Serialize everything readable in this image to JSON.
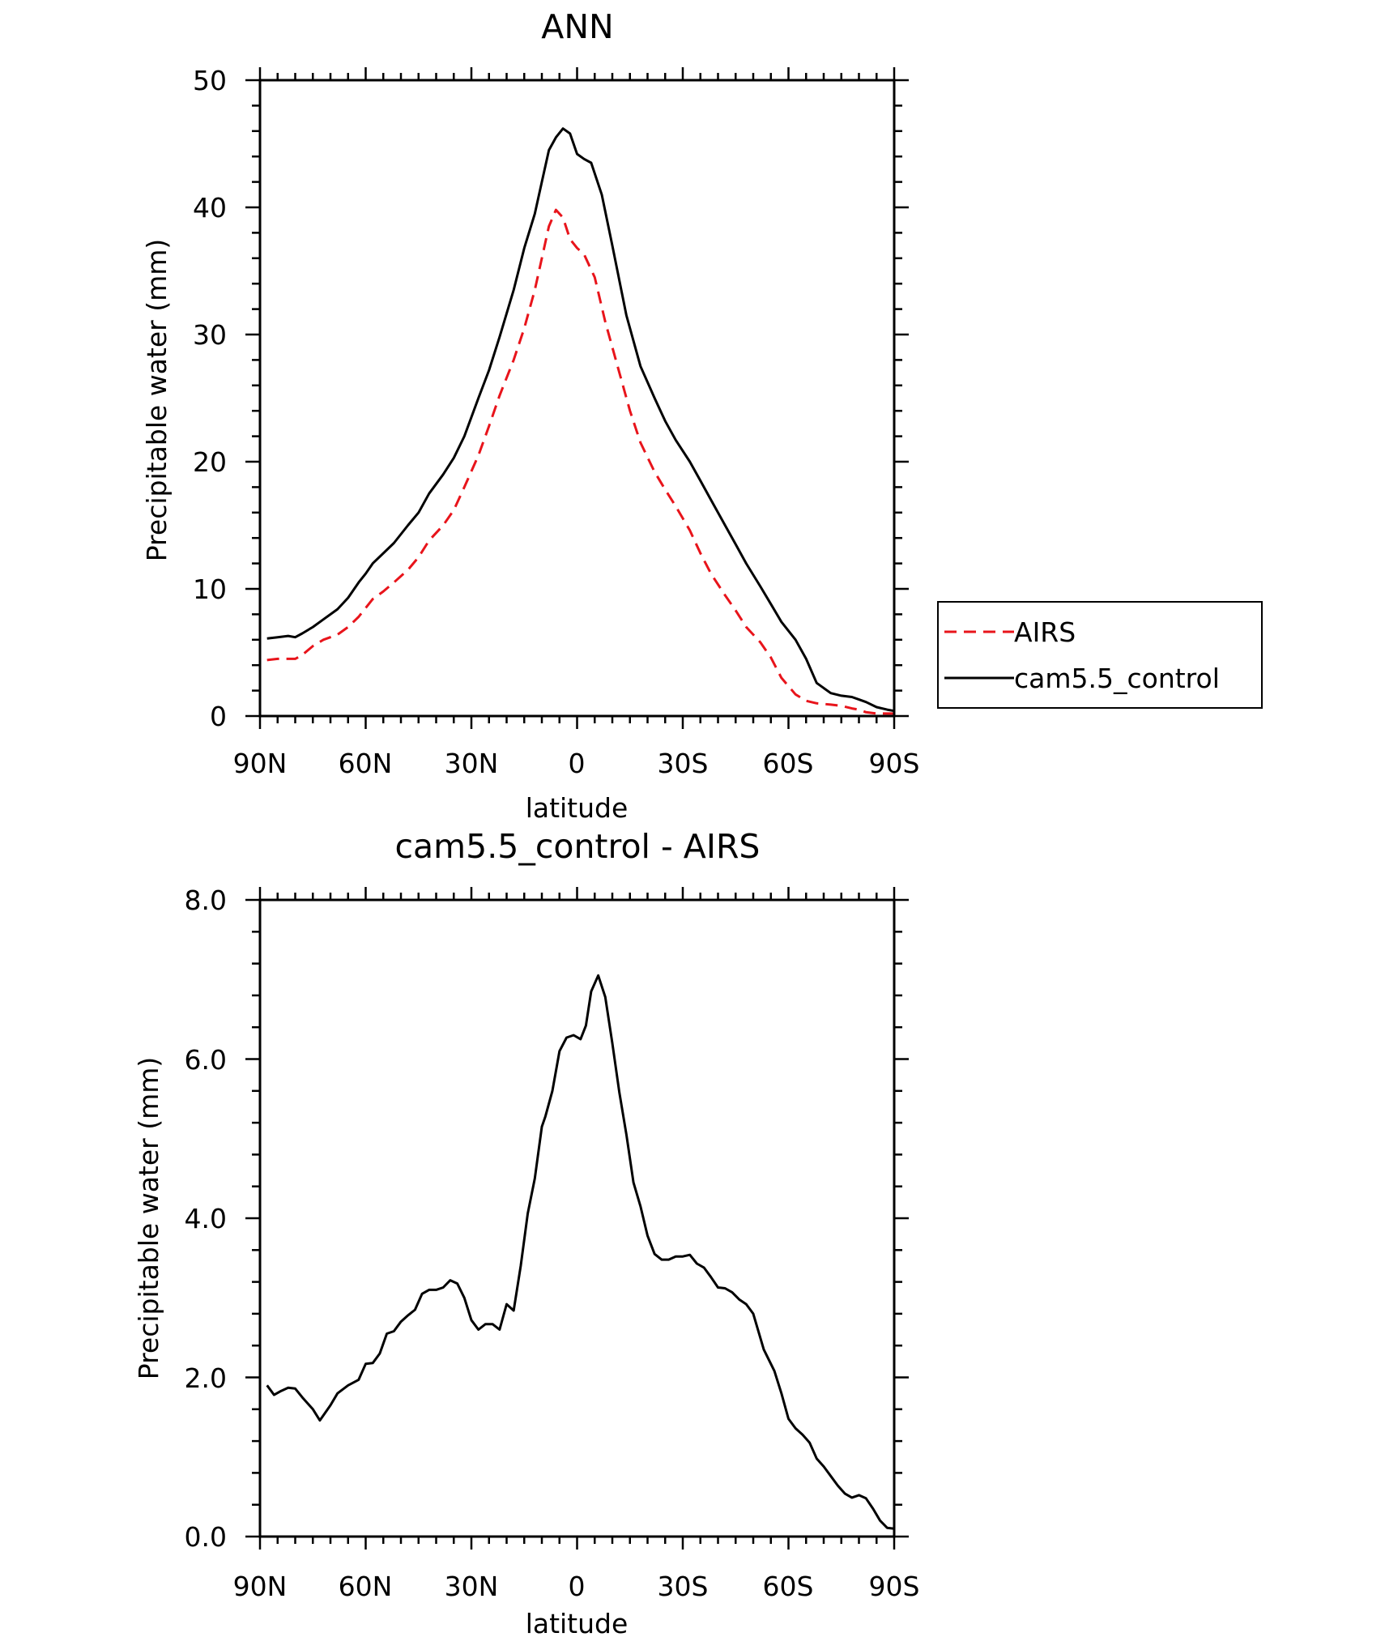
{
  "chart_data": [
    {
      "type": "line",
      "title": "ANN",
      "xlabel": "latitude",
      "ylabel": "Precipitable water (mm)",
      "xlim": [
        90,
        -90
      ],
      "ylim": [
        0,
        50
      ],
      "x_ticks": [
        90,
        60,
        30,
        0,
        -30,
        -60,
        -90
      ],
      "x_tick_labels": [
        "90N",
        "60N",
        "30N",
        "0",
        "30S",
        "60S",
        "90S"
      ],
      "y_ticks": [
        0,
        10,
        20,
        30,
        40,
        50
      ],
      "y_tick_labels": [
        "0",
        "10",
        "20",
        "30",
        "40",
        "50"
      ],
      "legend": {
        "placement": "right",
        "entries": [
          "AIRS",
          "cam5.5_control"
        ]
      },
      "series": [
        {
          "name": "AIRS",
          "color": "#e8141b",
          "dash": "dashed",
          "x": [
            88,
            85,
            80,
            78,
            75,
            72,
            68,
            65,
            62,
            60,
            58,
            55,
            52,
            48,
            45,
            42,
            38,
            35,
            32,
            28,
            25,
            22,
            18,
            15,
            12,
            10,
            8,
            6,
            4,
            2,
            0,
            -2,
            -5,
            -8,
            -12,
            -15,
            -18,
            -22,
            -25,
            -28,
            -32,
            -35,
            -38,
            -42,
            -45,
            -48,
            -52,
            -55,
            -58,
            -62,
            -65,
            -68,
            -72,
            -75,
            -78,
            -80,
            -82,
            -85,
            -88,
            -90
          ],
          "values": [
            4.4,
            4.5,
            4.5,
            4.8,
            5.5,
            6.0,
            6.4,
            7.0,
            7.8,
            8.5,
            9.2,
            9.8,
            10.5,
            11.5,
            12.5,
            13.8,
            15.0,
            16.2,
            18.0,
            20.5,
            22.8,
            25.2,
            28.0,
            30.5,
            33.5,
            36.0,
            38.5,
            39.8,
            39.2,
            37.5,
            36.8,
            36.3,
            34.5,
            31.0,
            27.0,
            24.0,
            21.5,
            19.2,
            17.8,
            16.5,
            14.6,
            12.8,
            11.2,
            9.5,
            8.3,
            7.0,
            5.8,
            4.6,
            3.0,
            1.7,
            1.2,
            1.0,
            0.9,
            0.8,
            0.6,
            0.5,
            0.3,
            0.2,
            0.2,
            0.2
          ]
        },
        {
          "name": "cam5.5_control",
          "color": "#000000",
          "dash": "solid",
          "x": [
            88,
            85,
            82,
            80,
            78,
            75,
            72,
            68,
            65,
            62,
            60,
            58,
            55,
            52,
            48,
            45,
            42,
            38,
            35,
            32,
            28,
            25,
            22,
            18,
            15,
            12,
            10,
            8,
            6,
            4,
            2,
            0,
            -2,
            -4,
            -7,
            -10,
            -14,
            -18,
            -22,
            -25,
            -28,
            -32,
            -35,
            -38,
            -42,
            -45,
            -48,
            -52,
            -55,
            -58,
            -62,
            -65,
            -68,
            -72,
            -75,
            -78,
            -80,
            -82,
            -85,
            -88,
            -90
          ],
          "values": [
            6.1,
            6.2,
            6.3,
            6.2,
            6.5,
            7.0,
            7.6,
            8.4,
            9.3,
            10.5,
            11.2,
            12.0,
            12.8,
            13.6,
            15.0,
            16.0,
            17.5,
            19.0,
            20.3,
            22.0,
            25.0,
            27.2,
            29.8,
            33.5,
            36.8,
            39.5,
            42.0,
            44.5,
            45.5,
            46.2,
            45.8,
            44.2,
            43.8,
            43.5,
            41.0,
            37.0,
            31.5,
            27.5,
            25.0,
            23.2,
            21.7,
            20.0,
            18.5,
            17.0,
            15.0,
            13.5,
            12.0,
            10.2,
            8.8,
            7.4,
            6.0,
            4.5,
            2.6,
            1.8,
            1.6,
            1.5,
            1.3,
            1.1,
            0.7,
            0.5,
            0.4
          ]
        }
      ]
    },
    {
      "type": "line",
      "title": "cam5.5_control - AIRS",
      "xlabel": "latitude",
      "ylabel": "Precipitable water (mm)",
      "xlim": [
        90,
        -90
      ],
      "ylim": [
        0,
        8
      ],
      "x_ticks": [
        90,
        60,
        30,
        0,
        -30,
        -60,
        -90
      ],
      "x_tick_labels": [
        "90N",
        "60N",
        "30N",
        "0",
        "30S",
        "60S",
        "90S"
      ],
      "y_ticks": [
        0,
        2,
        4,
        6,
        8
      ],
      "y_tick_labels": [
        "0.0",
        "2.0",
        "4.0",
        "6.0",
        "8.0"
      ],
      "series": [
        {
          "name": "cam5.5_control - AIRS",
          "color": "#000000",
          "dash": "solid",
          "x": [
            88,
            86,
            84,
            82,
            80,
            78,
            75,
            73,
            70,
            68,
            65,
            62,
            60,
            58,
            56,
            54,
            52,
            50,
            48,
            46,
            44,
            42,
            40,
            38,
            36,
            34,
            32,
            30,
            28,
            26,
            24,
            22,
            20,
            18,
            16,
            14,
            12,
            10,
            9,
            7,
            5,
            3,
            1,
            -1,
            -2.5,
            -4,
            -6,
            -8,
            -10,
            -12,
            -14,
            -16,
            -18,
            -20,
            -22,
            -24,
            -26,
            -28,
            -30,
            -32,
            -34,
            -36,
            -38,
            -40,
            -42,
            -44,
            -46,
            -48,
            -50,
            -53,
            -56,
            -58,
            -60,
            -62,
            -64,
            -66,
            -68,
            -70,
            -72,
            -74,
            -76,
            -78,
            -80,
            -82,
            -84,
            -86,
            -88,
            -90
          ],
          "values": [
            1.9,
            1.78,
            1.83,
            1.87,
            1.86,
            1.75,
            1.6,
            1.46,
            1.65,
            1.8,
            1.9,
            1.97,
            2.17,
            2.18,
            2.3,
            2.55,
            2.58,
            2.7,
            2.78,
            2.85,
            3.05,
            3.1,
            3.1,
            3.13,
            3.22,
            3.18,
            3.0,
            2.72,
            2.6,
            2.67,
            2.67,
            2.6,
            2.92,
            2.84,
            3.4,
            4.06,
            4.5,
            5.15,
            5.28,
            5.6,
            6.1,
            6.27,
            6.3,
            6.25,
            6.42,
            6.85,
            7.05,
            6.78,
            6.2,
            5.58,
            5.05,
            4.45,
            4.15,
            3.78,
            3.55,
            3.48,
            3.48,
            3.52,
            3.52,
            3.54,
            3.43,
            3.38,
            3.26,
            3.13,
            3.12,
            3.07,
            2.98,
            2.92,
            2.8,
            2.35,
            2.08,
            1.8,
            1.48,
            1.36,
            1.28,
            1.18,
            0.98,
            0.88,
            0.76,
            0.64,
            0.54,
            0.49,
            0.52,
            0.48,
            0.35,
            0.2,
            0.11,
            0.1
          ]
        }
      ]
    }
  ]
}
